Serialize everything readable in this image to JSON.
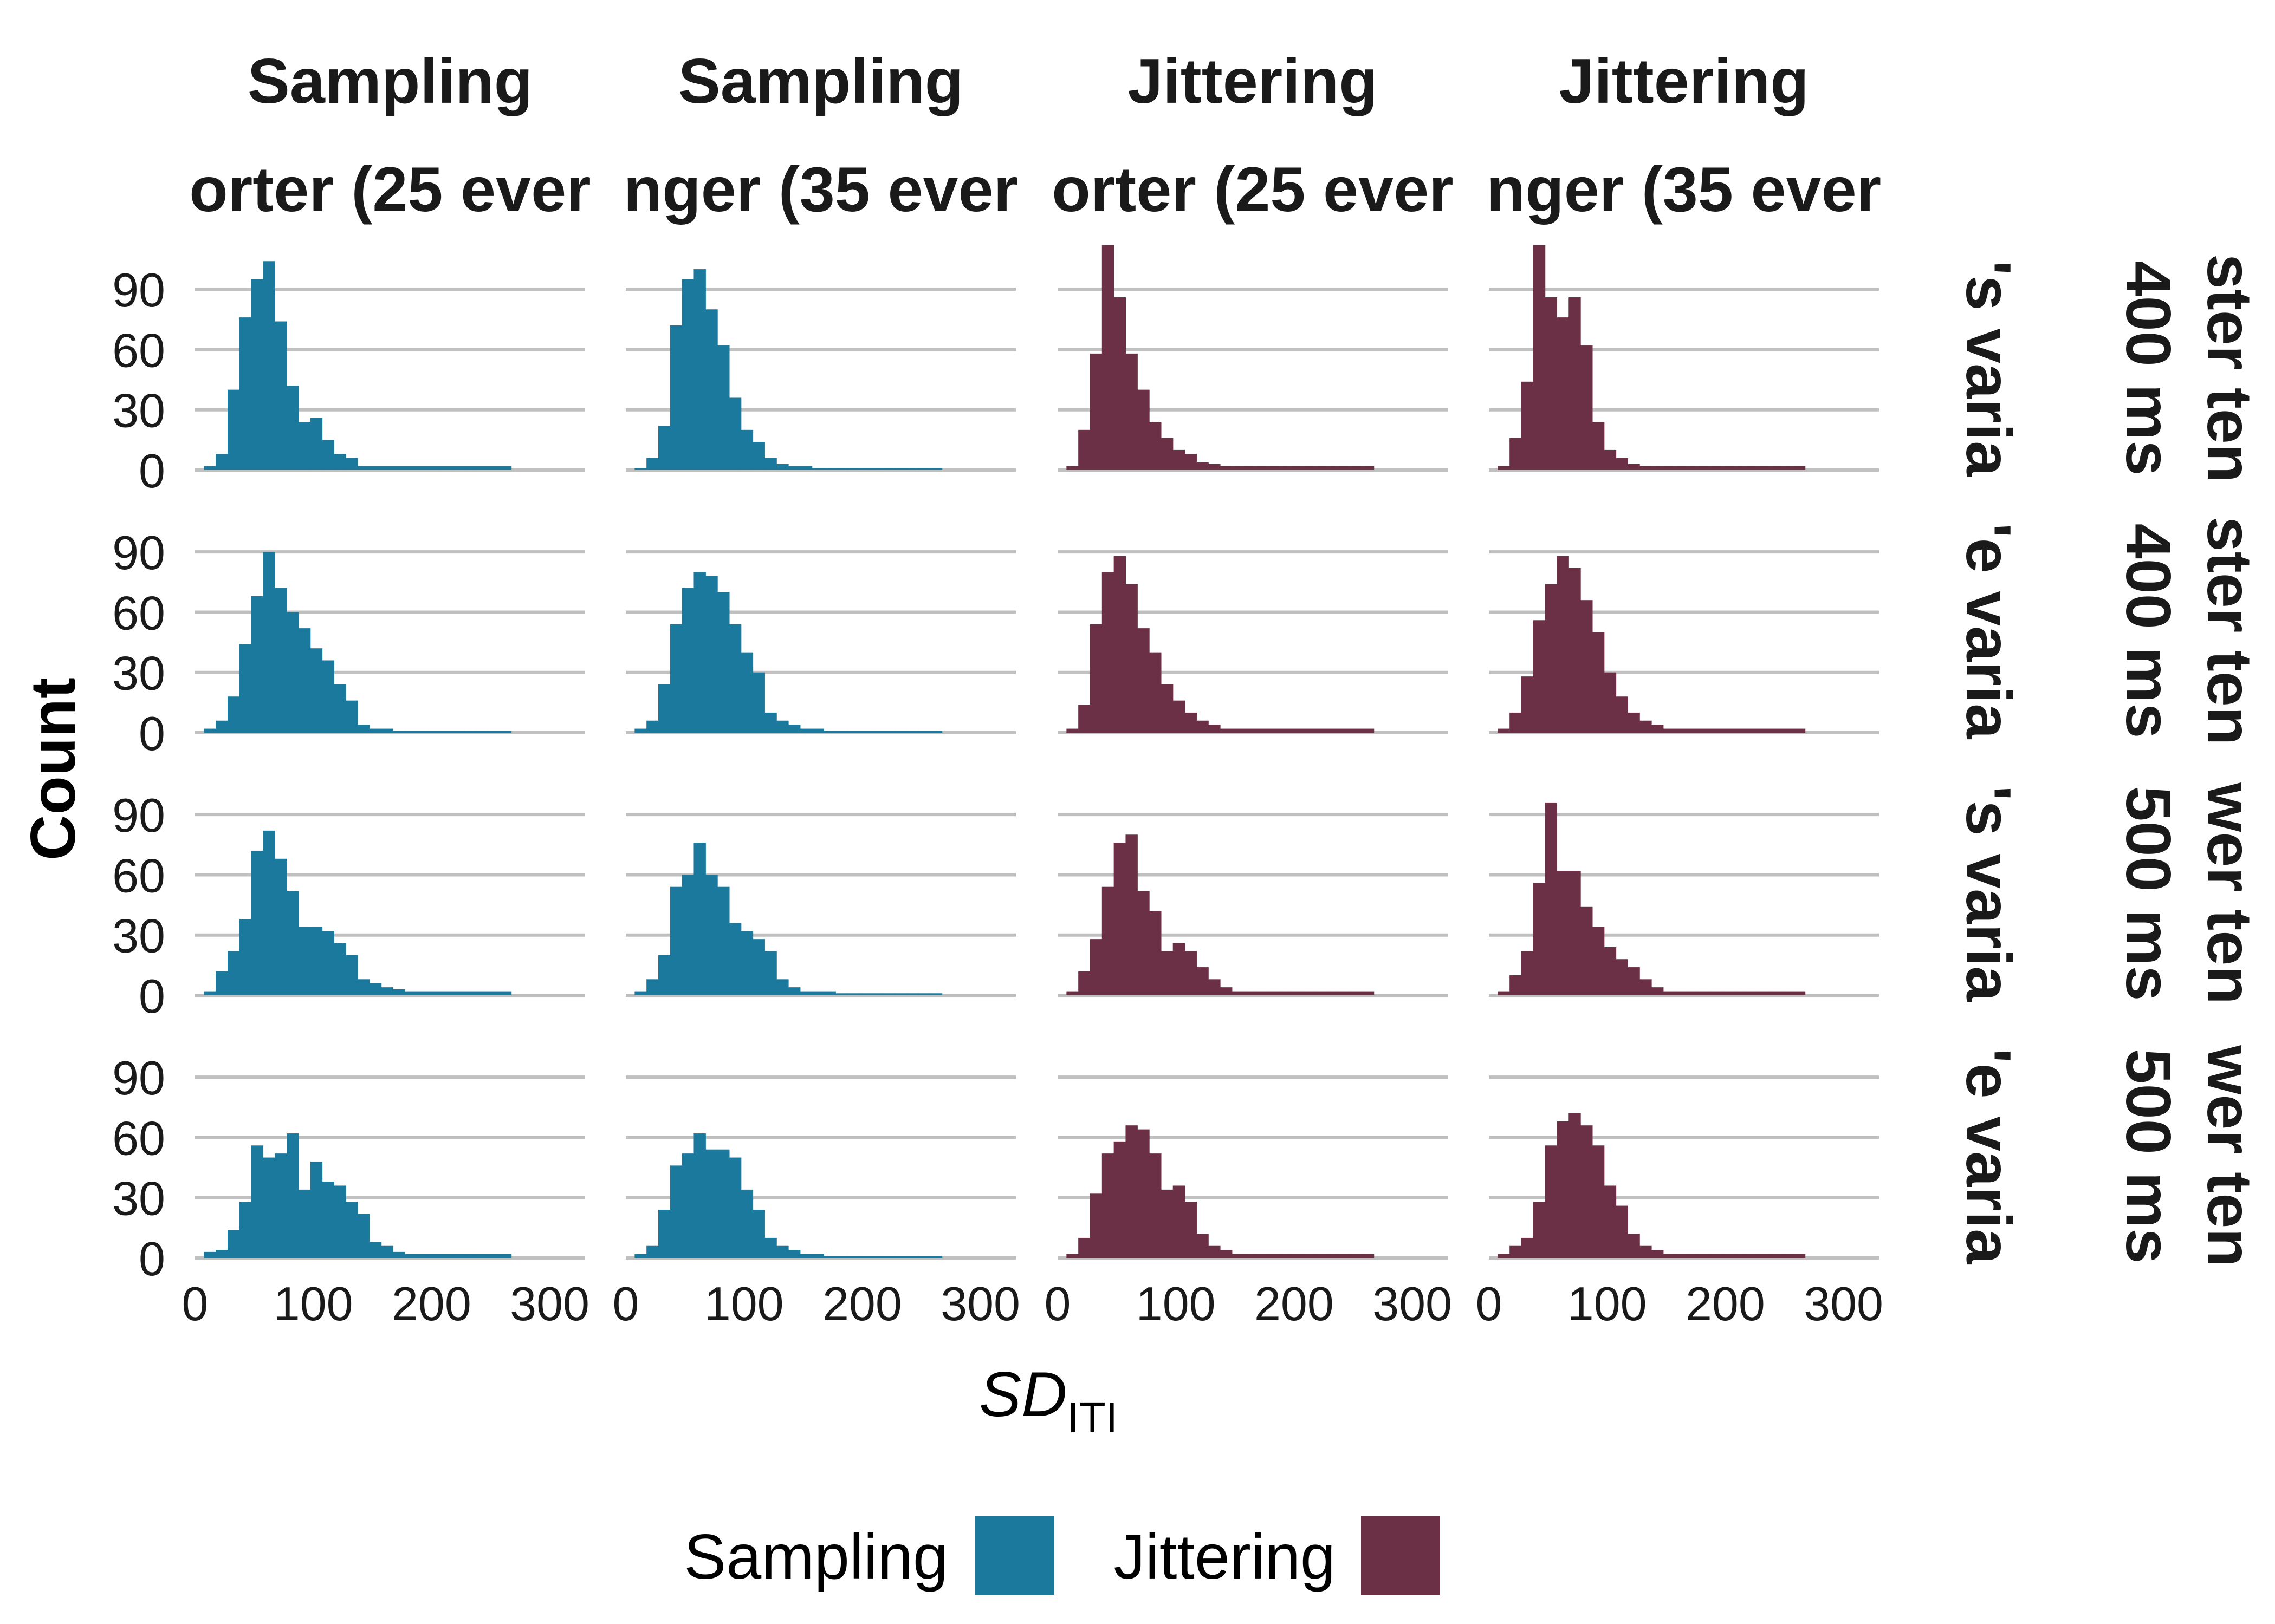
{
  "chart_data": {
    "type": "histogram",
    "xlabel": "SD",
    "xlabel_subscript": "ITI",
    "ylabel": "Count",
    "column_titles": [
      {
        "line1": "Sampling",
        "line2": "orter (25 ever"
      },
      {
        "line1": "Sampling",
        "line2": "nger (35 ever"
      },
      {
        "line1": "Jittering",
        "line2": "orter (25 ever"
      },
      {
        "line1": "Jittering",
        "line2": "nger (35 ever"
      }
    ],
    "row_titles": [
      {
        "line1": "ster ten",
        "line2": "400 ms",
        "line3": "'s varia"
      },
      {
        "line1": "ster ten",
        "line2": "400 ms",
        "line3": "'e varia"
      },
      {
        "line1": "wer ten",
        "line2": "500 ms",
        "line3": "'s varia"
      },
      {
        "line1": "wer ten",
        "line2": "500 ms",
        "line3": "'e varia"
      }
    ],
    "xlim": [
      0,
      330
    ],
    "ylim": [
      0,
      110
    ],
    "x_ticks": [
      "0",
      "100",
      "200",
      "300"
    ],
    "x_tick_values": [
      0,
      100,
      200,
      300
    ],
    "y_ticks": [
      "0",
      "30",
      "60",
      "90"
    ],
    "y_tick_values": [
      0,
      30,
      60,
      90
    ],
    "bin_start": 7.5,
    "bin_width": 10,
    "legend": {
      "position": "bottom",
      "entries": [
        {
          "label": "Sampling",
          "color": "#1b799e"
        },
        {
          "label": "Jittering",
          "color": "#6b3045"
        }
      ]
    },
    "grid": {
      "horizontal": true,
      "color": "#c0c0c0"
    },
    "panels": [
      [
        {
          "method": "Sampling",
          "counts": [
            2,
            8,
            40,
            76,
            95,
            104,
            74,
            42,
            24,
            26,
            15,
            8,
            6,
            2,
            2,
            2,
            2,
            2,
            2,
            2,
            2,
            2,
            2,
            2,
            2,
            2
          ]
        },
        {
          "method": "Sampling",
          "counts": [
            1,
            6,
            22,
            72,
            95,
            100,
            80,
            62,
            36,
            20,
            14,
            6,
            3,
            2,
            2,
            1,
            1,
            1,
            1,
            1,
            1,
            1,
            1,
            1,
            1,
            1
          ]
        },
        {
          "method": "Jittering",
          "counts": [
            2,
            20,
            58,
            112,
            86,
            58,
            40,
            24,
            16,
            10,
            8,
            4,
            3,
            2,
            2,
            2,
            2,
            2,
            2,
            2,
            2,
            2,
            2,
            2,
            2,
            2
          ]
        },
        {
          "method": "Jittering",
          "counts": [
            2,
            16,
            44,
            112,
            86,
            76,
            86,
            62,
            24,
            10,
            6,
            3,
            2,
            2,
            2,
            2,
            2,
            2,
            2,
            2,
            2,
            2,
            2,
            2,
            2,
            2
          ]
        }
      ],
      [
        {
          "method": "Sampling",
          "counts": [
            2,
            6,
            18,
            44,
            68,
            90,
            72,
            60,
            52,
            42,
            36,
            24,
            16,
            4,
            2,
            2,
            1,
            1,
            1,
            1,
            1,
            1,
            1,
            1,
            1,
            1
          ]
        },
        {
          "method": "Sampling",
          "counts": [
            2,
            6,
            24,
            54,
            72,
            80,
            78,
            70,
            54,
            40,
            30,
            10,
            6,
            4,
            2,
            2,
            1,
            1,
            1,
            1,
            1,
            1,
            1,
            1,
            1,
            1
          ]
        },
        {
          "method": "Jittering",
          "counts": [
            2,
            14,
            54,
            80,
            88,
            74,
            52,
            40,
            24,
            16,
            10,
            6,
            4,
            2,
            2,
            2,
            2,
            2,
            2,
            2,
            2,
            2,
            2,
            2,
            2,
            2
          ]
        },
        {
          "method": "Jittering",
          "counts": [
            2,
            10,
            28,
            56,
            74,
            88,
            82,
            66,
            50,
            30,
            18,
            10,
            6,
            4,
            2,
            2,
            2,
            2,
            2,
            2,
            2,
            2,
            2,
            2,
            2,
            2
          ]
        }
      ],
      [
        {
          "method": "Sampling",
          "counts": [
            2,
            12,
            22,
            38,
            72,
            82,
            68,
            52,
            34,
            34,
            32,
            26,
            20,
            8,
            6,
            4,
            3,
            2,
            2,
            2,
            2,
            2,
            2,
            2,
            2,
            2
          ]
        },
        {
          "method": "Sampling",
          "counts": [
            2,
            8,
            20,
            54,
            60,
            76,
            60,
            54,
            36,
            32,
            28,
            22,
            8,
            4,
            2,
            2,
            2,
            1,
            1,
            1,
            1,
            1,
            1,
            1,
            1,
            1
          ]
        },
        {
          "method": "Jittering",
          "counts": [
            2,
            12,
            28,
            54,
            76,
            80,
            52,
            42,
            22,
            26,
            22,
            14,
            8,
            4,
            2,
            2,
            2,
            2,
            2,
            2,
            2,
            2,
            2,
            2,
            2,
            2
          ]
        },
        {
          "method": "Jittering",
          "counts": [
            2,
            10,
            22,
            56,
            96,
            62,
            62,
            44,
            34,
            24,
            18,
            14,
            8,
            4,
            2,
            2,
            2,
            2,
            2,
            2,
            2,
            2,
            2,
            2,
            2,
            2
          ]
        }
      ],
      [
        {
          "method": "Sampling",
          "counts": [
            3,
            4,
            14,
            28,
            56,
            50,
            52,
            62,
            34,
            48,
            38,
            36,
            28,
            22,
            8,
            6,
            3,
            2,
            2,
            2,
            2,
            2,
            2,
            2,
            2,
            2
          ]
        },
        {
          "method": "Sampling",
          "counts": [
            2,
            6,
            24,
            46,
            52,
            62,
            54,
            54,
            50,
            34,
            24,
            10,
            6,
            4,
            2,
            2,
            1,
            1,
            1,
            1,
            1,
            1,
            1,
            1,
            1,
            1
          ]
        },
        {
          "method": "Jittering",
          "counts": [
            2,
            10,
            32,
            52,
            58,
            66,
            64,
            52,
            34,
            36,
            28,
            12,
            6,
            4,
            2,
            2,
            2,
            2,
            2,
            2,
            2,
            2,
            2,
            2,
            2,
            2
          ]
        },
        {
          "method": "Jittering",
          "counts": [
            2,
            6,
            10,
            28,
            56,
            68,
            72,
            66,
            56,
            36,
            26,
            12,
            6,
            4,
            2,
            2,
            2,
            2,
            2,
            2,
            2,
            2,
            2,
            2,
            2,
            2
          ]
        }
      ]
    ]
  }
}
